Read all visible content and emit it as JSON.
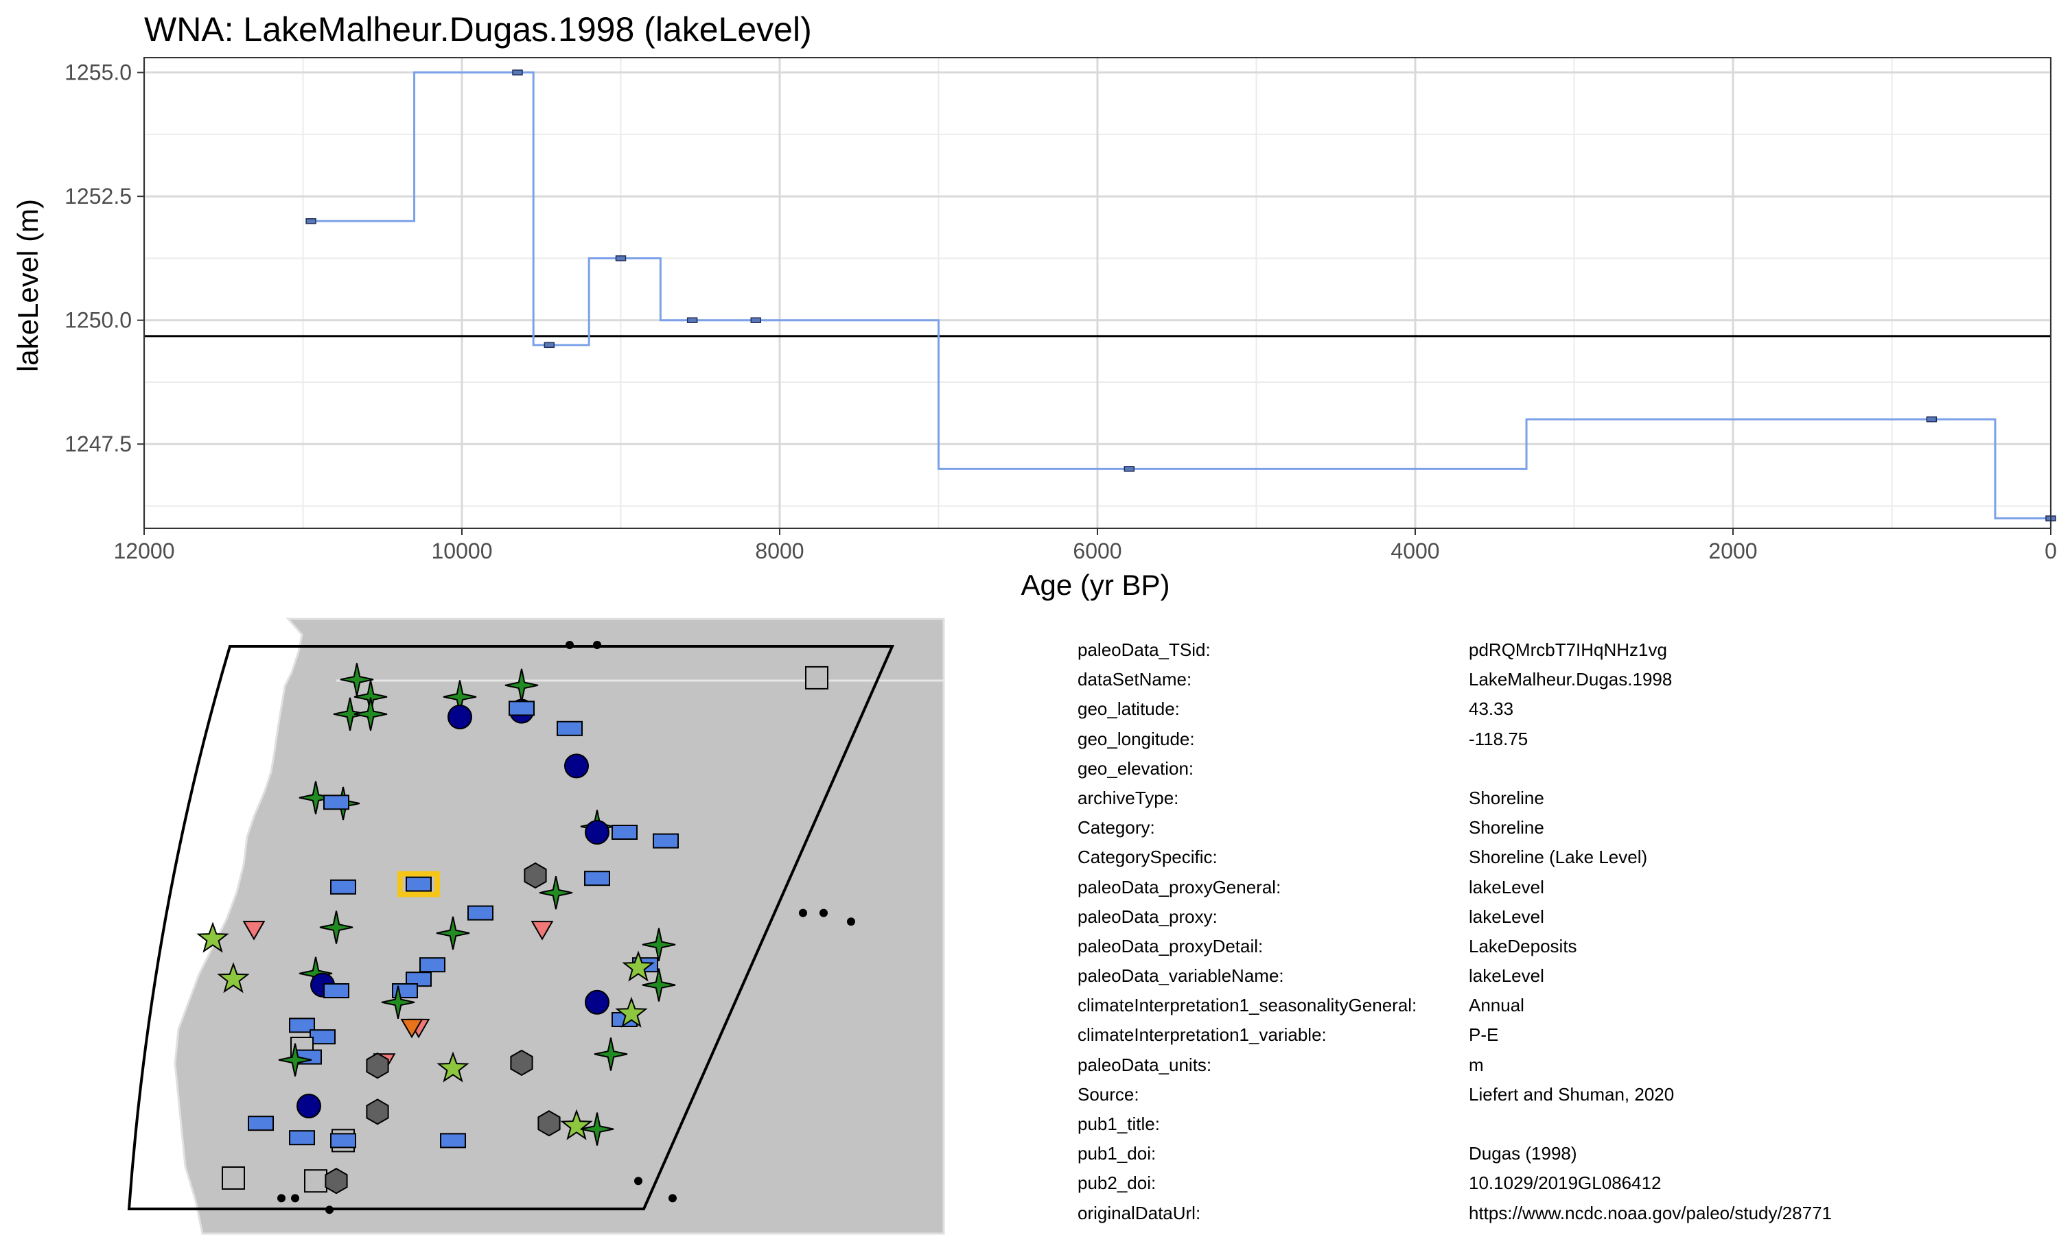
{
  "chart_data": {
    "type": "line",
    "title": "WNA: LakeMalheur.Dugas.1998 (lakeLevel)",
    "xlabel": "Age (yr BP)",
    "ylabel": "lakeLevel (m)",
    "xlim": [
      12000,
      0
    ],
    "x_reversed": true,
    "ylim": [
      1245.8,
      1255.3
    ],
    "x_ticks": [
      12000,
      10000,
      8000,
      6000,
      4000,
      2000,
      0
    ],
    "x_tick_labels": [
      "12000",
      "10000",
      "8000",
      "6000",
      "4000",
      "2000",
      "0"
    ],
    "y_ticks": [
      1247.5,
      1250.0,
      1252.5,
      1255.0
    ],
    "y_tick_labels": [
      "1247.5",
      "1250.0",
      "1252.5",
      "1255.0"
    ],
    "grid": true,
    "series": [
      {
        "color": "#7ba2e8",
        "style": "step",
        "steps": [
          {
            "x": [
              10950,
              10300
            ],
            "y": 1252.0
          },
          {
            "x": [
              10300,
              9550
            ],
            "y": 1255.0
          },
          {
            "x": [
              9550,
              9200
            ],
            "y": 1249.5
          },
          {
            "x": [
              9200,
              8750
            ],
            "y": 1251.25
          },
          {
            "x": [
              8750,
              7000
            ],
            "y": 1250.0
          },
          {
            "x": [
              7000,
              3300
            ],
            "y": 1247.0
          },
          {
            "x": [
              3300,
              350
            ],
            "y": 1248.0
          },
          {
            "x": [
              350,
              0
            ],
            "y": 1246.0
          }
        ],
        "points": [
          {
            "x": 10950,
            "y": 1252.0
          },
          {
            "x": 9650,
            "y": 1255.0
          },
          {
            "x": 9450,
            "y": 1249.5
          },
          {
            "x": 9000,
            "y": 1251.25
          },
          {
            "x": 8550,
            "y": 1250.0
          },
          {
            "x": 8150,
            "y": 1250.0
          },
          {
            "x": 5800,
            "y": 1247.0
          },
          {
            "x": 750,
            "y": 1248.0
          },
          {
            "x": 0,
            "y": 1246.0
          }
        ]
      }
    ],
    "reference_line": {
      "y": 1249.68,
      "color": "#000000"
    }
  },
  "map": {
    "land_color": "#c3c3c3",
    "ocean_color": "#ffffff",
    "region_outline_color": "#000000",
    "highlight_color": "#f5c518",
    "markers": [
      {
        "shape": "star4",
        "color": "#228b22",
        "lon": 0.28,
        "lat": 0.06
      },
      {
        "shape": "star4",
        "color": "#228b22",
        "lon": 0.3,
        "lat": 0.09
      },
      {
        "shape": "star4",
        "color": "#228b22",
        "lon": 0.27,
        "lat": 0.12
      },
      {
        "shape": "star4",
        "color": "#228b22",
        "lon": 0.3,
        "lat": 0.12
      },
      {
        "shape": "star4",
        "color": "#228b22",
        "lon": 0.43,
        "lat": 0.09
      },
      {
        "shape": "star4",
        "color": "#228b22",
        "lon": 0.52,
        "lat": 0.07
      },
      {
        "shape": "circle",
        "color": "#00008b",
        "lon": 0.43,
        "lat": 0.125
      },
      {
        "shape": "circle",
        "color": "#00008b",
        "lon": 0.52,
        "lat": 0.115
      },
      {
        "shape": "rect",
        "color": "#4f7fe0",
        "lon": 0.52,
        "lat": 0.11
      },
      {
        "shape": "rect",
        "color": "#4f7fe0",
        "lon": 0.59,
        "lat": 0.145
      },
      {
        "shape": "circle",
        "color": "#00008b",
        "lon": 0.6,
        "lat": 0.21
      },
      {
        "shape": "star4",
        "color": "#228b22",
        "lon": 0.22,
        "lat": 0.265
      },
      {
        "shape": "star4",
        "color": "#228b22",
        "lon": 0.26,
        "lat": 0.275
      },
      {
        "shape": "rect",
        "color": "#4f7fe0",
        "lon": 0.25,
        "lat": 0.273
      },
      {
        "shape": "star4",
        "color": "#228b22",
        "lon": 0.63,
        "lat": 0.315
      },
      {
        "shape": "circle",
        "color": "#00008b",
        "lon": 0.63,
        "lat": 0.325
      },
      {
        "shape": "rect",
        "color": "#4f7fe0",
        "lon": 0.67,
        "lat": 0.325
      },
      {
        "shape": "rect",
        "color": "#4f7fe0",
        "lon": 0.73,
        "lat": 0.34
      },
      {
        "shape": "hexagon",
        "color": "#606060",
        "lon": 0.54,
        "lat": 0.4
      },
      {
        "shape": "star4",
        "color": "#228b22",
        "lon": 0.57,
        "lat": 0.43
      },
      {
        "shape": "rect",
        "color": "#4f7fe0",
        "lon": 0.63,
        "lat": 0.405
      },
      {
        "shape": "rect",
        "color": "#4f7fe0",
        "lon": 0.26,
        "lat": 0.42
      },
      {
        "shape": "rect",
        "color": "#4f7fe0",
        "lon": 0.37,
        "lat": 0.415,
        "highlight": true
      },
      {
        "shape": "rect",
        "color": "#4f7fe0",
        "lon": 0.46,
        "lat": 0.465
      },
      {
        "shape": "triangle",
        "color": "#f07878",
        "lon": 0.13,
        "lat": 0.49
      },
      {
        "shape": "star5",
        "color": "#8dc63f",
        "lon": 0.07,
        "lat": 0.51
      },
      {
        "shape": "star4",
        "color": "#228b22",
        "lon": 0.25,
        "lat": 0.49
      },
      {
        "shape": "star4",
        "color": "#228b22",
        "lon": 0.42,
        "lat": 0.5
      },
      {
        "shape": "triangle",
        "color": "#f07878",
        "lon": 0.55,
        "lat": 0.49
      },
      {
        "shape": "star4",
        "color": "#228b22",
        "lon": 0.72,
        "lat": 0.52
      },
      {
        "shape": "rect",
        "color": "#4f7fe0",
        "lon": 0.7,
        "lat": 0.555
      },
      {
        "shape": "star5",
        "color": "#8dc63f",
        "lon": 0.69,
        "lat": 0.56
      },
      {
        "shape": "star5",
        "color": "#8dc63f",
        "lon": 0.1,
        "lat": 0.58
      },
      {
        "shape": "star4",
        "color": "#228b22",
        "lon": 0.22,
        "lat": 0.57
      },
      {
        "shape": "circle",
        "color": "#00008b",
        "lon": 0.23,
        "lat": 0.59
      },
      {
        "shape": "rect",
        "color": "#4f7fe0",
        "lon": 0.25,
        "lat": 0.6
      },
      {
        "shape": "rect",
        "color": "#4f7fe0",
        "lon": 0.39,
        "lat": 0.555
      },
      {
        "shape": "rect",
        "color": "#4f7fe0",
        "lon": 0.37,
        "lat": 0.58
      },
      {
        "shape": "rect",
        "color": "#4f7fe0",
        "lon": 0.35,
        "lat": 0.6
      },
      {
        "shape": "star4",
        "color": "#228b22",
        "lon": 0.34,
        "lat": 0.62
      },
      {
        "shape": "star4",
        "color": "#228b22",
        "lon": 0.72,
        "lat": 0.59
      },
      {
        "shape": "circle",
        "color": "#00008b",
        "lon": 0.63,
        "lat": 0.62
      },
      {
        "shape": "rect",
        "color": "#4f7fe0",
        "lon": 0.67,
        "lat": 0.65
      },
      {
        "shape": "star5",
        "color": "#8dc63f",
        "lon": 0.68,
        "lat": 0.64
      },
      {
        "shape": "rect",
        "color": "#4f7fe0",
        "lon": 0.2,
        "lat": 0.66
      },
      {
        "shape": "triangle",
        "color": "#f07878",
        "lon": 0.37,
        "lat": 0.66
      },
      {
        "shape": "triangle",
        "color": "#e8731a",
        "lon": 0.36,
        "lat": 0.66
      },
      {
        "shape": "rect",
        "color": "#4f7fe0",
        "lon": 0.23,
        "lat": 0.68
      },
      {
        "shape": "square",
        "color": "#c0c0c0",
        "lon": 0.2,
        "lat": 0.7
      },
      {
        "shape": "rect",
        "color": "#4f7fe0",
        "lon": 0.21,
        "lat": 0.715
      },
      {
        "shape": "star4",
        "color": "#228b22",
        "lon": 0.19,
        "lat": 0.72
      },
      {
        "shape": "triangle",
        "color": "#f07878",
        "lon": 0.32,
        "lat": 0.72
      },
      {
        "shape": "hexagon",
        "color": "#606060",
        "lon": 0.31,
        "lat": 0.73
      },
      {
        "shape": "star5",
        "color": "#8dc63f",
        "lon": 0.42,
        "lat": 0.735
      },
      {
        "shape": "hexagon",
        "color": "#606060",
        "lon": 0.52,
        "lat": 0.725
      },
      {
        "shape": "star4",
        "color": "#228b22",
        "lon": 0.65,
        "lat": 0.71
      },
      {
        "shape": "circle",
        "color": "#00008b",
        "lon": 0.21,
        "lat": 0.8
      },
      {
        "shape": "hexagon",
        "color": "#606060",
        "lon": 0.31,
        "lat": 0.81
      },
      {
        "shape": "rect",
        "color": "#4f7fe0",
        "lon": 0.14,
        "lat": 0.83
      },
      {
        "shape": "hexagon",
        "color": "#606060",
        "lon": 0.56,
        "lat": 0.83
      },
      {
        "shape": "star5",
        "color": "#8dc63f",
        "lon": 0.6,
        "lat": 0.835
      },
      {
        "shape": "star4",
        "color": "#228b22",
        "lon": 0.63,
        "lat": 0.84
      },
      {
        "shape": "rect",
        "color": "#4f7fe0",
        "lon": 0.2,
        "lat": 0.855
      },
      {
        "shape": "square",
        "color": "#c0c0c0",
        "lon": 0.26,
        "lat": 0.86
      },
      {
        "shape": "rect",
        "color": "#4f7fe0",
        "lon": 0.26,
        "lat": 0.86
      },
      {
        "shape": "rect",
        "color": "#4f7fe0",
        "lon": 0.42,
        "lat": 0.86
      },
      {
        "shape": "square",
        "color": "#c0c0c0",
        "lon": 0.1,
        "lat": 0.925
      },
      {
        "shape": "square",
        "color": "#c0c0c0",
        "lon": 0.22,
        "lat": 0.93
      },
      {
        "shape": "hexagon",
        "color": "#606060",
        "lon": 0.25,
        "lat": 0.93
      },
      {
        "shape": "square",
        "color": "#c0c0c0",
        "lon": 0.95,
        "lat": 0.057
      }
    ],
    "dots": [
      {
        "lon": 0.59,
        "lat": 0.0
      },
      {
        "lon": 0.63,
        "lat": 0.0
      },
      {
        "lon": 0.93,
        "lat": 0.465
      },
      {
        "lon": 0.96,
        "lat": 0.465
      },
      {
        "lon": 1.0,
        "lat": 0.48
      },
      {
        "lon": 0.69,
        "lat": 0.93
      },
      {
        "lon": 0.74,
        "lat": 0.96
      },
      {
        "lon": 0.17,
        "lat": 0.96
      },
      {
        "lon": 0.19,
        "lat": 0.96
      },
      {
        "lon": 0.24,
        "lat": 0.98
      }
    ]
  },
  "metadata": [
    {
      "key": "paleoData_TSid:",
      "value": "pdRQMrcbT7IHqNHz1vg"
    },
    {
      "key": "dataSetName:",
      "value": "LakeMalheur.Dugas.1998"
    },
    {
      "key": "geo_latitude:",
      "value": "43.33"
    },
    {
      "key": "geo_longitude:",
      "value": "-118.75"
    },
    {
      "key": "geo_elevation:",
      "value": ""
    },
    {
      "key": "archiveType:",
      "value": "Shoreline"
    },
    {
      "key": "Category:",
      "value": "Shoreline"
    },
    {
      "key": "CategorySpecific:",
      "value": "Shoreline (Lake Level)"
    },
    {
      "key": "paleoData_proxyGeneral:",
      "value": "lakeLevel"
    },
    {
      "key": "paleoData_proxy:",
      "value": "lakeLevel"
    },
    {
      "key": "paleoData_proxyDetail:",
      "value": "LakeDeposits"
    },
    {
      "key": "paleoData_variableName:",
      "value": "lakeLevel"
    },
    {
      "key": "climateInterpretation1_seasonalityGeneral:",
      "value": "Annual"
    },
    {
      "key": "climateInterpretation1_variable:",
      "value": "P-E"
    },
    {
      "key": "paleoData_units:",
      "value": "m"
    },
    {
      "key": "Source:",
      "value": "Liefert and Shuman, 2020"
    },
    {
      "key": "pub1_title:",
      "value": ""
    },
    {
      "key": "pub1_doi:",
      "value": "Dugas (1998)"
    },
    {
      "key": "pub2_doi:",
      "value": "10.1029/2019GL086412"
    },
    {
      "key": "originalDataUrl:",
      "value": "https://www.ncdc.noaa.gov/paleo/study/28771"
    }
  ]
}
